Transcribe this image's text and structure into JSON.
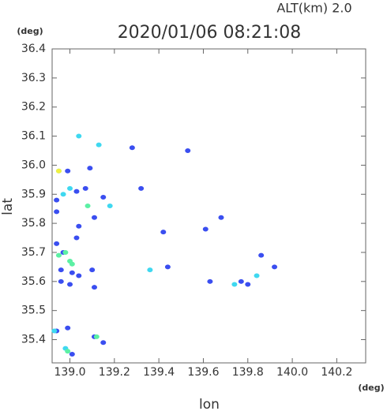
{
  "chart_data": {
    "type": "scatter",
    "title": "2020/01/06 08:21:08",
    "subtitle": "ALT(km) 2.0",
    "x_unit": "(deg)",
    "y_unit": "(deg)",
    "x_label": "lon",
    "y_label": "lat",
    "xlim": [
      138.92,
      140.33
    ],
    "ylim": [
      35.32,
      36.4
    ],
    "xticks": [
      {
        "value": 139,
        "label": "139.0"
      },
      139.2,
      139.4,
      139.6,
      139.8,
      {
        "value": 140,
        "label": "140.0"
      },
      140.2
    ],
    "yticks": [
      {
        "value": 35.4,
        "label": "35.4"
      },
      35.5,
      35.6,
      35.7,
      35.8,
      35.9,
      {
        "value": 36,
        "label": "36.0"
      },
      36.1,
      36.2,
      36.3,
      36.4
    ],
    "series": [
      {
        "color": "#3a4ef0",
        "x": [
          139.28,
          139.53,
          139.09,
          138.99,
          139.03,
          139.07,
          139.15,
          139.32,
          138.94,
          138.94,
          139.04,
          139.11,
          139.68,
          139.03,
          139.61,
          139.42,
          138.94,
          138.97,
          138.96,
          139.01,
          139.1,
          139.44,
          139.86,
          139.92,
          138.96,
          139.0,
          139.04,
          139.11,
          139.63,
          139.8,
          139.77,
          138.94,
          138.99,
          139.11,
          139.15,
          139.01
        ],
        "values": [
          36.06,
          36.05,
          35.99,
          35.98,
          35.91,
          35.92,
          35.89,
          35.92,
          35.88,
          35.84,
          35.79,
          35.82,
          35.82,
          35.75,
          35.78,
          35.77,
          35.73,
          35.7,
          35.64,
          35.63,
          35.64,
          35.65,
          35.69,
          35.65,
          35.6,
          35.59,
          35.62,
          35.58,
          35.6,
          35.59,
          35.6,
          35.43,
          35.44,
          35.41,
          35.39,
          35.35
        ]
      },
      {
        "color": "#3fd8f0",
        "x": [
          139.04,
          139.13,
          138.95,
          139.0,
          138.97,
          139.18,
          139.36,
          139.74,
          139.84,
          138.93,
          138.98
        ],
        "values": [
          36.1,
          36.07,
          35.98,
          35.92,
          35.9,
          35.86,
          35.64,
          35.59,
          35.62,
          35.43,
          35.37
        ]
      },
      {
        "color": "#5cf0a4",
        "x": [
          138.95,
          139.0,
          139.01,
          138.98,
          138.99,
          139.12,
          139.08
        ],
        "values": [
          35.69,
          35.67,
          35.66,
          35.7,
          35.36,
          35.41,
          35.86
        ]
      },
      {
        "color": "#f0f040",
        "x": [
          138.95
        ],
        "values": [
          35.98
        ]
      }
    ]
  }
}
